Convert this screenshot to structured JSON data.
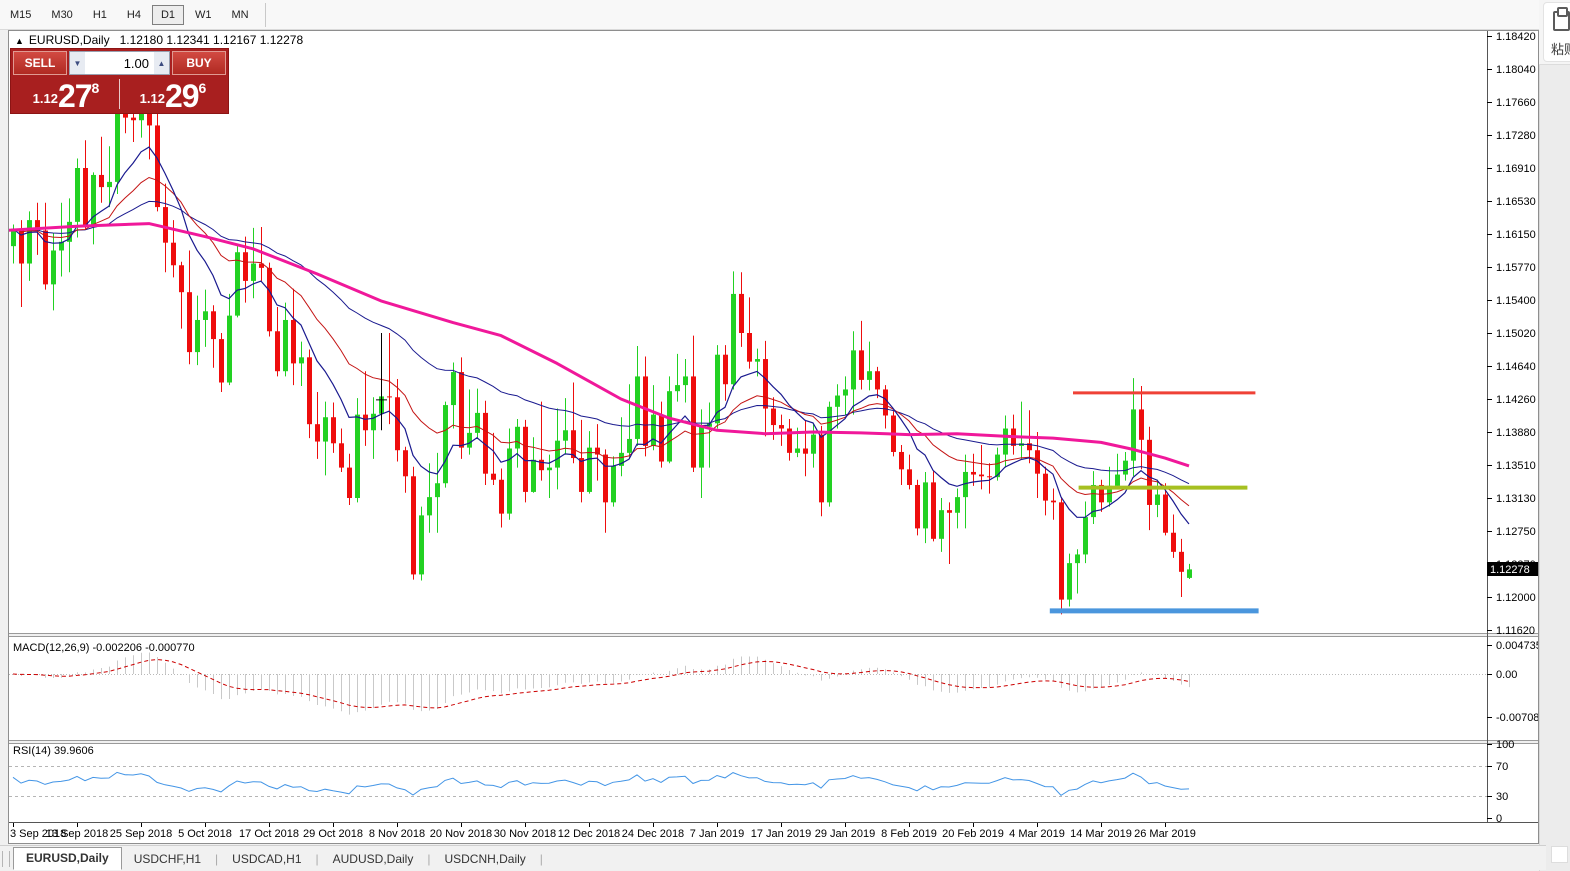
{
  "toolbar": {
    "timeframes": [
      {
        "label": "M15",
        "active": false
      },
      {
        "label": "M30",
        "active": false
      },
      {
        "label": "H1",
        "active": false
      },
      {
        "label": "H4",
        "active": false
      },
      {
        "label": "D1",
        "active": true
      },
      {
        "label": "W1",
        "active": false
      },
      {
        "label": "MN",
        "active": false
      }
    ]
  },
  "overlay_paste": {
    "label": "粘贴"
  },
  "chart_header": {
    "symbol": "EURUSD,Daily",
    "ohlc": "1.12180 1.12341 1.12167 1.12278",
    "arrow": "▲"
  },
  "trade_panel": {
    "sell_label": "SELL",
    "buy_label": "BUY",
    "volume": "1.00",
    "sell_price": {
      "prefix": "1.12",
      "big": "27",
      "sup": "8"
    },
    "buy_price": {
      "prefix": "1.12",
      "big": "29",
      "sup": "6"
    },
    "spin_down": "▼",
    "spin_up": "▲"
  },
  "price_axis": {
    "labels": [
      "1.18420",
      "1.18040",
      "1.17660",
      "1.17280",
      "1.16910",
      "1.16530",
      "1.16150",
      "1.15770",
      "1.15400",
      "1.15020",
      "1.14640",
      "1.14260",
      "1.13880",
      "1.13510",
      "1.13130",
      "1.12750",
      "1.12370",
      "1.12000",
      "1.11620"
    ],
    "current": "1.12278"
  },
  "macd": {
    "label": "MACD(12,26,9) -0.002206 -0.000770",
    "axis_labels": [
      "0.004735",
      "0.00",
      "-0.007087"
    ]
  },
  "rsi": {
    "label": "RSI(14) 39.9606",
    "axis_labels": [
      "100",
      "70",
      "30",
      "0"
    ]
  },
  "date_axis": {
    "labels": [
      "3 Sep 2018",
      "13 Sep 2018",
      "25 Sep 2018",
      "5 Oct 2018",
      "17 Oct 2018",
      "29 Oct 2018",
      "8 Nov 2018",
      "20 Nov 2018",
      "30 Nov 2018",
      "12 Dec 2018",
      "24 Dec 2018",
      "7 Jan 2019",
      "17 Jan 2019",
      "29 Jan 2019",
      "8 Feb 2019",
      "20 Feb 2019",
      "4 Mar 2019",
      "14 Mar 2019",
      "26 Mar 2019"
    ],
    "bars": [
      0,
      8,
      16,
      24,
      32,
      40,
      48,
      56,
      64,
      72,
      80,
      88,
      96,
      104,
      112,
      120,
      128,
      136,
      144
    ]
  },
  "tabs": [
    {
      "label": "EURUSD,Daily",
      "active": true
    },
    {
      "label": "USDCHF,H1",
      "active": false
    },
    {
      "label": "USDCAD,H1",
      "active": false
    },
    {
      "label": "AUDUSD,Daily",
      "active": false
    },
    {
      "label": "USDCNH,Daily",
      "active": false
    }
  ],
  "colors": {
    "up": "#22d122",
    "down": "#ee0d0d",
    "ma_fast": "#1a1a8f",
    "ma_mid": "#c41414",
    "ma_slow": "#1a1a8f",
    "ma_long": "#f0189a",
    "macd_hist": "#c9c9c9",
    "macd_signal": "#cc0000",
    "rsi_line": "#4395e6",
    "hline_red": "#ef4136",
    "hline_olive": "#a6c021",
    "hline_blue": "#4a96dd",
    "axis_line": "#555555",
    "price_tag_bg": "#000000",
    "price_tag_fg": "#ffffff"
  },
  "chart_data": {
    "type": "candlestick",
    "symbol": "EURUSD",
    "timeframe": "Daily",
    "y_axis": {
      "top_price": 1.1842,
      "price_step": 0.0038
    },
    "indicator_params": {
      "ma_fast": 10,
      "ma_mid": 21,
      "ma_slow": 45,
      "macd": [
        12,
        26,
        9
      ],
      "rsi": 14
    },
    "candles": [
      [
        1.16,
        1.1625,
        1.158,
        1.162
      ],
      [
        1.162,
        1.163,
        1.153,
        1.158
      ],
      [
        1.158,
        1.164,
        1.156,
        1.163
      ],
      [
        1.163,
        1.165,
        1.159,
        1.1618
      ],
      [
        1.1618,
        1.165,
        1.155,
        1.1556
      ],
      [
        1.1556,
        1.1615,
        1.1526,
        1.1595
      ],
      [
        1.1595,
        1.165,
        1.1565,
        1.1605
      ],
      [
        1.1605,
        1.1655,
        1.157,
        1.1628
      ],
      [
        1.1628,
        1.1701,
        1.161,
        1.169
      ],
      [
        1.169,
        1.1722,
        1.162,
        1.1623
      ],
      [
        1.1623,
        1.1685,
        1.1602,
        1.1682
      ],
      [
        1.1682,
        1.1726,
        1.165,
        1.1668
      ],
      [
        1.1668,
        1.1715,
        1.1645,
        1.1674
      ],
      [
        1.1674,
        1.1786,
        1.166,
        1.178
      ],
      [
        1.178,
        1.1815,
        1.173,
        1.1748
      ],
      [
        1.1748,
        1.1796,
        1.172,
        1.1745
      ],
      [
        1.1745,
        1.179,
        1.1725,
        1.1767
      ],
      [
        1.1767,
        1.1799,
        1.17,
        1.1739
      ],
      [
        1.1739,
        1.1756,
        1.164,
        1.1645
      ],
      [
        1.1645,
        1.1672,
        1.157,
        1.1604
      ],
      [
        1.1604,
        1.163,
        1.1564,
        1.1578
      ],
      [
        1.1578,
        1.1582,
        1.1505,
        1.1547
      ],
      [
        1.1547,
        1.1595,
        1.1464,
        1.1478
      ],
      [
        1.1478,
        1.1543,
        1.1463,
        1.1515
      ],
      [
        1.1515,
        1.155,
        1.1484,
        1.1525
      ],
      [
        1.1525,
        1.1532,
        1.146,
        1.1493
      ],
      [
        1.1493,
        1.15,
        1.1432,
        1.1443
      ],
      [
        1.1443,
        1.1545,
        1.144,
        1.152
      ],
      [
        1.152,
        1.16,
        1.1518,
        1.1593
      ],
      [
        1.1593,
        1.1611,
        1.1535,
        1.156
      ],
      [
        1.156,
        1.1621,
        1.154,
        1.158
      ],
      [
        1.158,
        1.1622,
        1.156,
        1.1575
      ],
      [
        1.1575,
        1.1581,
        1.1496,
        1.1502
      ],
      [
        1.1502,
        1.153,
        1.145,
        1.1456
      ],
      [
        1.1456,
        1.1535,
        1.145,
        1.1515
      ],
      [
        1.1515,
        1.1551,
        1.144,
        1.1465
      ],
      [
        1.1465,
        1.149,
        1.1439,
        1.1472
      ],
      [
        1.1472,
        1.1481,
        1.1379,
        1.1395
      ],
      [
        1.1395,
        1.1432,
        1.1355,
        1.1375
      ],
      [
        1.1375,
        1.1421,
        1.1336,
        1.1403
      ],
      [
        1.1403,
        1.142,
        1.1362,
        1.1373
      ],
      [
        1.1373,
        1.139,
        1.134,
        1.1345
      ],
      [
        1.1345,
        1.1361,
        1.1302,
        1.131
      ],
      [
        1.131,
        1.1425,
        1.1305,
        1.1406
      ],
      [
        1.1406,
        1.1456,
        1.137,
        1.1388
      ],
      [
        1.1388,
        1.1426,
        1.1355,
        1.1407
      ],
      [
        1.1407,
        1.1446,
        1.139,
        1.1427
      ],
      [
        1.1427,
        1.15,
        1.1395,
        1.1426
      ],
      [
        1.1426,
        1.1447,
        1.1352,
        1.1365
      ],
      [
        1.1365,
        1.1369,
        1.1316,
        1.1335
      ],
      [
        1.1335,
        1.1346,
        1.1216,
        1.1222
      ],
      [
        1.1222,
        1.13,
        1.1215,
        1.129
      ],
      [
        1.129,
        1.135,
        1.127,
        1.1311
      ],
      [
        1.1311,
        1.1362,
        1.127,
        1.1327
      ],
      [
        1.1327,
        1.1421,
        1.1322,
        1.1417
      ],
      [
        1.1417,
        1.1466,
        1.139,
        1.1455
      ],
      [
        1.1455,
        1.1472,
        1.1355,
        1.1368
      ],
      [
        1.1368,
        1.1435,
        1.136,
        1.1385
      ],
      [
        1.1385,
        1.1436,
        1.1378,
        1.1408
      ],
      [
        1.1408,
        1.1422,
        1.1325,
        1.1338
      ],
      [
        1.1338,
        1.1385,
        1.1325,
        1.1331
      ],
      [
        1.1331,
        1.1344,
        1.1276,
        1.1292
      ],
      [
        1.1292,
        1.139,
        1.1285,
        1.1367
      ],
      [
        1.1367,
        1.1401,
        1.1345,
        1.1392
      ],
      [
        1.1392,
        1.14,
        1.1305,
        1.1317
      ],
      [
        1.1317,
        1.138,
        1.1316,
        1.1354
      ],
      [
        1.1354,
        1.1421,
        1.133,
        1.1342
      ],
      [
        1.1342,
        1.136,
        1.131,
        1.1345
      ],
      [
        1.1345,
        1.1413,
        1.132,
        1.1376
      ],
      [
        1.1376,
        1.1425,
        1.136,
        1.1388
      ],
      [
        1.1388,
        1.1443,
        1.135,
        1.1356
      ],
      [
        1.1356,
        1.14,
        1.1305,
        1.1317
      ],
      [
        1.1317,
        1.1387,
        1.1315,
        1.1368
      ],
      [
        1.1368,
        1.1395,
        1.133,
        1.136
      ],
      [
        1.136,
        1.1366,
        1.127,
        1.1305
      ],
      [
        1.1305,
        1.1358,
        1.13,
        1.1347
      ],
      [
        1.1347,
        1.1403,
        1.1335,
        1.1362
      ],
      [
        1.1362,
        1.1441,
        1.1355,
        1.1378
      ],
      [
        1.1378,
        1.1485,
        1.137,
        1.145
      ],
      [
        1.145,
        1.1473,
        1.1358,
        1.137
      ],
      [
        1.137,
        1.144,
        1.1365,
        1.1406
      ],
      [
        1.1406,
        1.1421,
        1.1345,
        1.1352
      ],
      [
        1.1352,
        1.145,
        1.135,
        1.1433
      ],
      [
        1.1433,
        1.1476,
        1.1421,
        1.144
      ],
      [
        1.144,
        1.147,
        1.142,
        1.145
      ],
      [
        1.145,
        1.1497,
        1.134,
        1.1345
      ],
      [
        1.1345,
        1.1412,
        1.131,
        1.1392
      ],
      [
        1.1392,
        1.142,
        1.1345,
        1.1396
      ],
      [
        1.1396,
        1.1486,
        1.139,
        1.1475
      ],
      [
        1.1475,
        1.1486,
        1.1422,
        1.1441
      ],
      [
        1.1441,
        1.1571,
        1.1435,
        1.1545
      ],
      [
        1.1545,
        1.157,
        1.1484,
        1.15
      ],
      [
        1.15,
        1.1541,
        1.1459,
        1.1467
      ],
      [
        1.1467,
        1.1482,
        1.145,
        1.147
      ],
      [
        1.147,
        1.1491,
        1.1381,
        1.1413
      ],
      [
        1.1413,
        1.1426,
        1.1377,
        1.1394
      ],
      [
        1.1394,
        1.1406,
        1.137,
        1.139
      ],
      [
        1.139,
        1.1401,
        1.1353,
        1.1362
      ],
      [
        1.1362,
        1.1391,
        1.1357,
        1.1367
      ],
      [
        1.1367,
        1.14,
        1.1335,
        1.1361
      ],
      [
        1.1361,
        1.1395,
        1.1345,
        1.1383
      ],
      [
        1.1383,
        1.1393,
        1.1289,
        1.1305
      ],
      [
        1.1305,
        1.1421,
        1.13,
        1.1415
      ],
      [
        1.1415,
        1.1441,
        1.139,
        1.1428
      ],
      [
        1.1428,
        1.145,
        1.1405,
        1.1435
      ],
      [
        1.1435,
        1.1502,
        1.1406,
        1.148
      ],
      [
        1.148,
        1.1514,
        1.1435,
        1.1446
      ],
      [
        1.1446,
        1.149,
        1.1434,
        1.1456
      ],
      [
        1.1456,
        1.1461,
        1.1425,
        1.1435
      ],
      [
        1.1435,
        1.144,
        1.139,
        1.1405
      ],
      [
        1.1405,
        1.141,
        1.1358,
        1.1363
      ],
      [
        1.1363,
        1.1371,
        1.1325,
        1.1343
      ],
      [
        1.1343,
        1.136,
        1.132,
        1.1325
      ],
      [
        1.1325,
        1.1331,
        1.1267,
        1.1275
      ],
      [
        1.1275,
        1.134,
        1.1258,
        1.1328
      ],
      [
        1.1328,
        1.1341,
        1.126,
        1.1263
      ],
      [
        1.1263,
        1.131,
        1.1248,
        1.1296
      ],
      [
        1.1296,
        1.1305,
        1.1234,
        1.1293
      ],
      [
        1.1293,
        1.1321,
        1.1275,
        1.1311
      ],
      [
        1.1311,
        1.136,
        1.1275,
        1.134
      ],
      [
        1.134,
        1.1361,
        1.1324,
        1.1337
      ],
      [
        1.1337,
        1.1371,
        1.132,
        1.1335
      ],
      [
        1.1335,
        1.135,
        1.1315,
        1.1334
      ],
      [
        1.1334,
        1.1368,
        1.133,
        1.136
      ],
      [
        1.136,
        1.1405,
        1.1345,
        1.139
      ],
      [
        1.139,
        1.1406,
        1.136,
        1.137
      ],
      [
        1.137,
        1.1421,
        1.1355,
        1.1373
      ],
      [
        1.1373,
        1.1411,
        1.135,
        1.1365
      ],
      [
        1.1365,
        1.1386,
        1.131,
        1.1338
      ],
      [
        1.1338,
        1.1346,
        1.129,
        1.1307
      ],
      [
        1.1307,
        1.1321,
        1.1285,
        1.1305
      ],
      [
        1.1305,
        1.1311,
        1.1176,
        1.1193
      ],
      [
        1.1193,
        1.1246,
        1.1185,
        1.1235
      ],
      [
        1.1235,
        1.1251,
        1.12,
        1.1245
      ],
      [
        1.1245,
        1.1306,
        1.1235,
        1.1288
      ],
      [
        1.1288,
        1.1341,
        1.128,
        1.1325
      ],
      [
        1.1325,
        1.1331,
        1.1294,
        1.1305
      ],
      [
        1.1305,
        1.1346,
        1.13,
        1.1324
      ],
      [
        1.1324,
        1.1361,
        1.132,
        1.1337
      ],
      [
        1.1337,
        1.1363,
        1.133,
        1.1353
      ],
      [
        1.1353,
        1.1448,
        1.1335,
        1.1412
      ],
      [
        1.1412,
        1.1439,
        1.1343,
        1.1377
      ],
      [
        1.1377,
        1.1392,
        1.1273,
        1.1302
      ],
      [
        1.1302,
        1.1331,
        1.1288,
        1.1314
      ],
      [
        1.1314,
        1.1327,
        1.1267,
        1.127
      ],
      [
        1.127,
        1.1291,
        1.1241,
        1.1248
      ],
      [
        1.1248,
        1.1263,
        1.1196,
        1.1225
      ],
      [
        1.1218,
        1.12341,
        1.12167,
        1.12278
      ]
    ],
    "overlays": {
      "long_ma_points": [
        [
          -1,
          1.1618
        ],
        [
          8,
          1.1623
        ],
        [
          17,
          1.1626
        ],
        [
          24,
          1.1611
        ],
        [
          30,
          1.1597
        ],
        [
          38,
          1.1568
        ],
        [
          46,
          1.1537
        ],
        [
          55,
          1.1512
        ],
        [
          61,
          1.1497
        ],
        [
          68,
          1.1465
        ],
        [
          76,
          1.1424
        ],
        [
          82,
          1.1402
        ],
        [
          88,
          1.1388
        ],
        [
          94,
          1.1384
        ],
        [
          100,
          1.1386
        ],
        [
          106,
          1.1385
        ],
        [
          112,
          1.1383
        ],
        [
          118,
          1.1384
        ],
        [
          124,
          1.1381
        ],
        [
          130,
          1.1379
        ],
        [
          136,
          1.1374
        ],
        [
          140,
          1.1366
        ],
        [
          144,
          1.1356
        ],
        [
          147,
          1.1347
        ]
      ],
      "hlines": [
        {
          "price": 1.1431,
          "from_bar": 132.5,
          "to_bar": 155.3,
          "color_key": "hline_red",
          "width": 3
        },
        {
          "price": 1.1322,
          "from_bar": 133.2,
          "to_bar": 154.3,
          "color_key": "hline_olive",
          "width": 4
        },
        {
          "price": 1.118,
          "from_bar": 129.6,
          "to_bar": 155.7,
          "color_key": "hline_blue",
          "width": 5
        }
      ],
      "crosshair_mark": {
        "bar": 46,
        "price_top": 1.15,
        "price_bottom": 1.1388,
        "price_tick": 1.1423
      }
    }
  }
}
